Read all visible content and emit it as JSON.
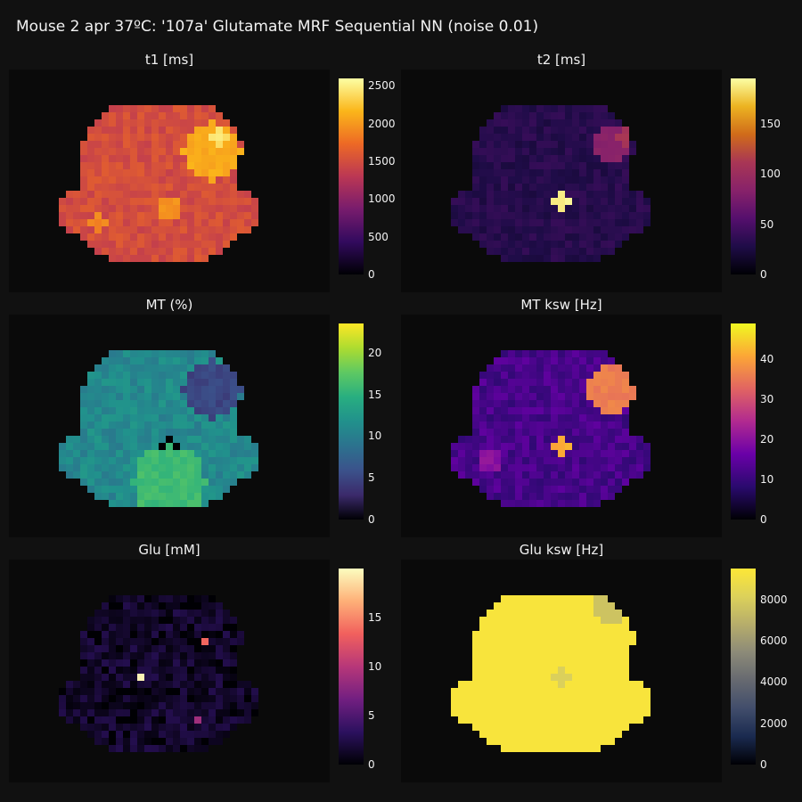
{
  "title": "Mouse 2 apr 37ºC: '107a' Glutamate MRF Sequential NN (noise 0.01)",
  "chart_data": [
    {
      "type": "heatmap",
      "title": "t1 [ms]",
      "colormap": "inferno",
      "range": [
        0,
        2600
      ],
      "ticks": [
        "0",
        "500",
        "1000",
        "1500",
        "2000",
        "2500"
      ],
      "tick_values": [
        0,
        500,
        1000,
        1500,
        2000,
        2500
      ],
      "stops": [
        "#000004",
        "#320a5e",
        "#781c6d",
        "#bb3754",
        "#ed6925",
        "#fbb61a",
        "#fcffa4"
      ],
      "background": 0,
      "base": 1500,
      "noise": 120,
      "hotspots": [
        {
          "x": 28,
          "y": 11,
          "r": 4,
          "v": 2100
        },
        {
          "x": 29,
          "y": 9,
          "r": 1,
          "v": 2450
        },
        {
          "x": 22,
          "y": 19,
          "r": 1.5,
          "v": 1950
        },
        {
          "x": 12,
          "y": 21,
          "r": 1,
          "v": 1900
        }
      ]
    },
    {
      "type": "heatmap",
      "title": "t2 [ms]",
      "colormap": "cividis-dark",
      "range": [
        0,
        195
      ],
      "ticks": [
        "0",
        "50",
        "100",
        "150"
      ],
      "tick_values": [
        0,
        50,
        100,
        150
      ],
      "stops": [
        "#000004",
        "#1f0c48",
        "#550f6d",
        "#88226a",
        "#a83655",
        "#d06b1a",
        "#ecb321",
        "#fcffa4"
      ],
      "background": 0,
      "base": 32,
      "noise": 8,
      "hotspots": [
        {
          "x": 29,
          "y": 10,
          "r": 2.5,
          "v": 85
        },
        {
          "x": 31,
          "y": 9,
          "r": 1,
          "v": 110
        },
        {
          "x": 22,
          "y": 18,
          "r": 1.2,
          "v": 190
        }
      ]
    },
    {
      "type": "heatmap",
      "title": "MT (%)",
      "colormap": "viridis",
      "range": [
        0,
        23.5
      ],
      "ticks": [
        "0",
        "5",
        "10",
        "15",
        "20"
      ],
      "tick_values": [
        0,
        5,
        10,
        15,
        20
      ],
      "stops": [
        "#000004",
        "#3b2a6b",
        "#3b528b",
        "#2c728e",
        "#21918c",
        "#28ae80",
        "#5ec962",
        "#addc30",
        "#fde725"
      ],
      "background": 0,
      "base": 11,
      "noise": 1.5,
      "hotspots": [
        {
          "x": 28,
          "y": 10,
          "r": 4,
          "v": 5
        },
        {
          "x": 22,
          "y": 18,
          "r": 1.3,
          "v": 0
        },
        {
          "x": 22,
          "y": 23,
          "r": 5,
          "v": 16
        }
      ]
    },
    {
      "type": "heatmap",
      "title": "MT ksw [Hz]",
      "colormap": "plasma",
      "range": [
        0,
        49
      ],
      "ticks": [
        "0",
        "10",
        "20",
        "30",
        "40"
      ],
      "tick_values": [
        0,
        10,
        20,
        30,
        40
      ],
      "stops": [
        "#000004",
        "#2a0a6e",
        "#6a00a8",
        "#b12a90",
        "#e16462",
        "#fca636",
        "#f0f921"
      ],
      "background": 0,
      "base": 12,
      "noise": 3,
      "hotspots": [
        {
          "x": 29,
          "y": 10,
          "r": 3.5,
          "v": 36
        },
        {
          "x": 22,
          "y": 18,
          "r": 1.2,
          "v": 42
        },
        {
          "x": 12,
          "y": 20,
          "r": 1.5,
          "v": 20
        }
      ]
    },
    {
      "type": "heatmap",
      "title": "Glu [mM]",
      "colormap": "magma",
      "range": [
        0,
        20
      ],
      "ticks": [
        "0",
        "5",
        "10",
        "15"
      ],
      "tick_values": [
        0,
        5,
        10,
        15
      ],
      "stops": [
        "#000004",
        "#2c115f",
        "#721f81",
        "#b73779",
        "#f1605d",
        "#feb078",
        "#fcfdbf"
      ],
      "background": 0,
      "base": 1.5,
      "noise": 1.2,
      "hotspots": [
        {
          "x": 18,
          "y": 16,
          "r": 0.6,
          "v": 19
        },
        {
          "x": 27,
          "y": 11,
          "r": 0.6,
          "v": 14
        },
        {
          "x": 26,
          "y": 22,
          "r": 0.8,
          "v": 9
        }
      ]
    },
    {
      "type": "heatmap",
      "title": "Glu ksw [Hz]",
      "colormap": "cividis",
      "range": [
        0,
        9500
      ],
      "ticks": [
        "0",
        "2000",
        "4000",
        "6000",
        "8000"
      ],
      "tick_values": [
        0,
        2000,
        4000,
        6000,
        8000
      ],
      "stops": [
        "#000004",
        "#1a2a4f",
        "#414d6b",
        "#666970",
        "#8c8a78",
        "#b6ad6b",
        "#dcd15a",
        "#fde737"
      ],
      "background": 0,
      "base": 9300,
      "noise": 0,
      "hotspots": [
        {
          "x": 29,
          "y": 6,
          "r": 2.5,
          "v": 7600
        },
        {
          "x": 22,
          "y": 16,
          "r": 1,
          "v": 8100
        }
      ]
    }
  ]
}
